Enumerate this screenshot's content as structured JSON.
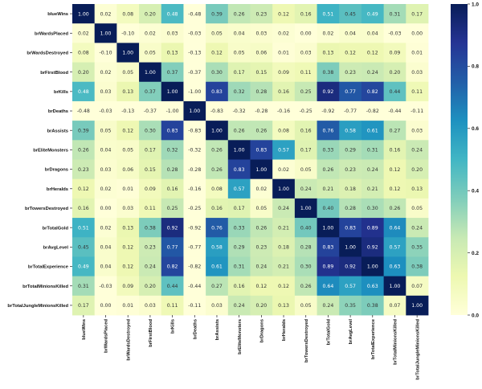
{
  "chart_data": {
    "type": "heatmap",
    "colormap": "YlGnBu",
    "vmin": 0.0,
    "vmax": 1.0,
    "labels": [
      "blueWins",
      "brWardsPlaced",
      "brWardsDestroyed",
      "brFirstBlood",
      "brKills",
      "brDeaths",
      "brAssists",
      "brEliteMonsters",
      "brDragons",
      "brHeralds",
      "brTowersDestroyed",
      "brTotalGold",
      "brAvgLevel",
      "brTotalExperience",
      "brTotalMinionsKilled",
      "brTotalJungleMinionsKilled"
    ],
    "values": [
      [
        1.0,
        0.02,
        0.08,
        0.2,
        0.48,
        -0.48,
        0.39,
        0.26,
        0.23,
        0.12,
        0.16,
        0.51,
        0.45,
        0.49,
        0.31,
        0.17
      ],
      [
        0.02,
        1.0,
        -0.1,
        0.02,
        0.03,
        -0.03,
        0.05,
        0.04,
        0.03,
        0.02,
        0.0,
        0.02,
        0.04,
        0.04,
        -0.03,
        0.0
      ],
      [
        0.08,
        -0.1,
        1.0,
        0.05,
        0.13,
        -0.13,
        0.12,
        0.05,
        0.06,
        0.01,
        0.03,
        0.13,
        0.12,
        0.12,
        0.09,
        0.01
      ],
      [
        0.2,
        0.02,
        0.05,
        1.0,
        0.37,
        -0.37,
        0.3,
        0.17,
        0.15,
        0.09,
        0.11,
        0.38,
        0.23,
        0.24,
        0.2,
        0.03
      ],
      [
        0.48,
        0.03,
        0.13,
        0.37,
        1.0,
        -1.0,
        0.83,
        0.32,
        0.28,
        0.16,
        0.25,
        0.92,
        0.77,
        0.82,
        0.44,
        0.11
      ],
      [
        -0.48,
        -0.03,
        -0.13,
        -0.37,
        -1.0,
        1.0,
        -0.83,
        -0.32,
        -0.28,
        -0.16,
        -0.25,
        -0.92,
        -0.77,
        -0.82,
        -0.44,
        -0.11
      ],
      [
        0.39,
        0.05,
        0.12,
        0.3,
        0.83,
        -0.83,
        1.0,
        0.26,
        0.26,
        0.08,
        0.16,
        0.76,
        0.58,
        0.61,
        0.27,
        0.03
      ],
      [
        0.26,
        0.04,
        0.05,
        0.17,
        0.32,
        -0.32,
        0.26,
        1.0,
        0.83,
        0.57,
        0.17,
        0.33,
        0.29,
        0.31,
        0.16,
        0.24
      ],
      [
        0.23,
        0.03,
        0.06,
        0.15,
        0.28,
        -0.28,
        0.26,
        0.83,
        1.0,
        0.02,
        0.05,
        0.26,
        0.23,
        0.24,
        0.12,
        0.2
      ],
      [
        0.12,
        0.02,
        0.01,
        0.09,
        0.16,
        -0.16,
        0.08,
        0.57,
        0.02,
        1.0,
        0.24,
        0.21,
        0.18,
        0.21,
        0.12,
        0.13
      ],
      [
        0.16,
        0.0,
        0.03,
        0.11,
        0.25,
        -0.25,
        0.16,
        0.17,
        0.05,
        0.24,
        1.0,
        0.4,
        0.28,
        0.3,
        0.26,
        0.05
      ],
      [
        0.51,
        0.02,
        0.13,
        0.38,
        0.92,
        -0.92,
        0.76,
        0.33,
        0.26,
        0.21,
        0.4,
        1.0,
        0.83,
        0.89,
        0.64,
        0.24
      ],
      [
        0.45,
        0.04,
        0.12,
        0.23,
        0.77,
        -0.77,
        0.58,
        0.29,
        0.23,
        0.18,
        0.28,
        0.83,
        1.0,
        0.92,
        0.57,
        0.35
      ],
      [
        0.49,
        0.04,
        0.12,
        0.24,
        0.82,
        -0.82,
        0.61,
        0.31,
        0.24,
        0.21,
        0.3,
        0.89,
        0.92,
        1.0,
        0.63,
        0.38
      ],
      [
        0.31,
        -0.03,
        0.09,
        0.2,
        0.44,
        -0.44,
        0.27,
        0.16,
        0.12,
        0.12,
        0.26,
        0.64,
        0.57,
        0.63,
        1.0,
        0.07
      ],
      [
        0.17,
        0.0,
        0.01,
        0.03,
        0.11,
        -0.11,
        0.03,
        0.24,
        0.2,
        0.13,
        0.05,
        0.24,
        0.35,
        0.38,
        0.07,
        1.0
      ]
    ],
    "colorbar_ticks": [
      "0.0",
      "0.2",
      "0.4",
      "0.6",
      "0.8",
      "1.0"
    ],
    "annotations": true,
    "grid": false
  }
}
